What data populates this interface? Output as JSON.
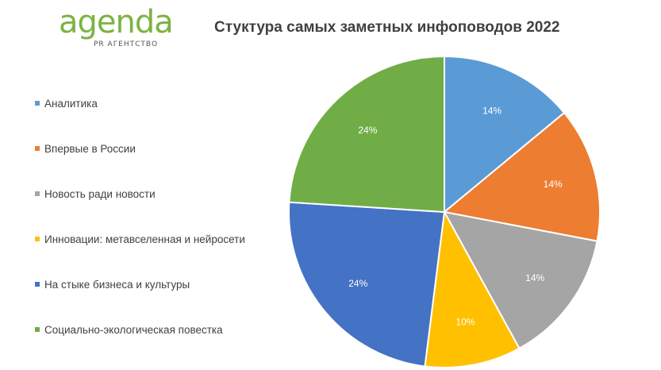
{
  "logo": {
    "word": "agenda",
    "subtitle": "PR АГЕНТСТВО"
  },
  "chart_data": {
    "type": "pie",
    "title": "Стуктура самых заметных инфоповодов 2022",
    "categories": [
      "Аналитика",
      "Впервые в России",
      "Новость ради новости",
      "Инновации: метавселенная и нейросети",
      "На стыке бизнеса и культуры",
      "Социально-экологическая повестка"
    ],
    "values": [
      14,
      14,
      14,
      10,
      24,
      24
    ],
    "labels": [
      "14%",
      "14%",
      "14%",
      "10%",
      "24%",
      "24%"
    ],
    "colors": [
      "#5b9bd5",
      "#ed7d31",
      "#a5a5a5",
      "#ffc000",
      "#4472c4",
      "#70ad47"
    ],
    "legend_position": "left"
  }
}
